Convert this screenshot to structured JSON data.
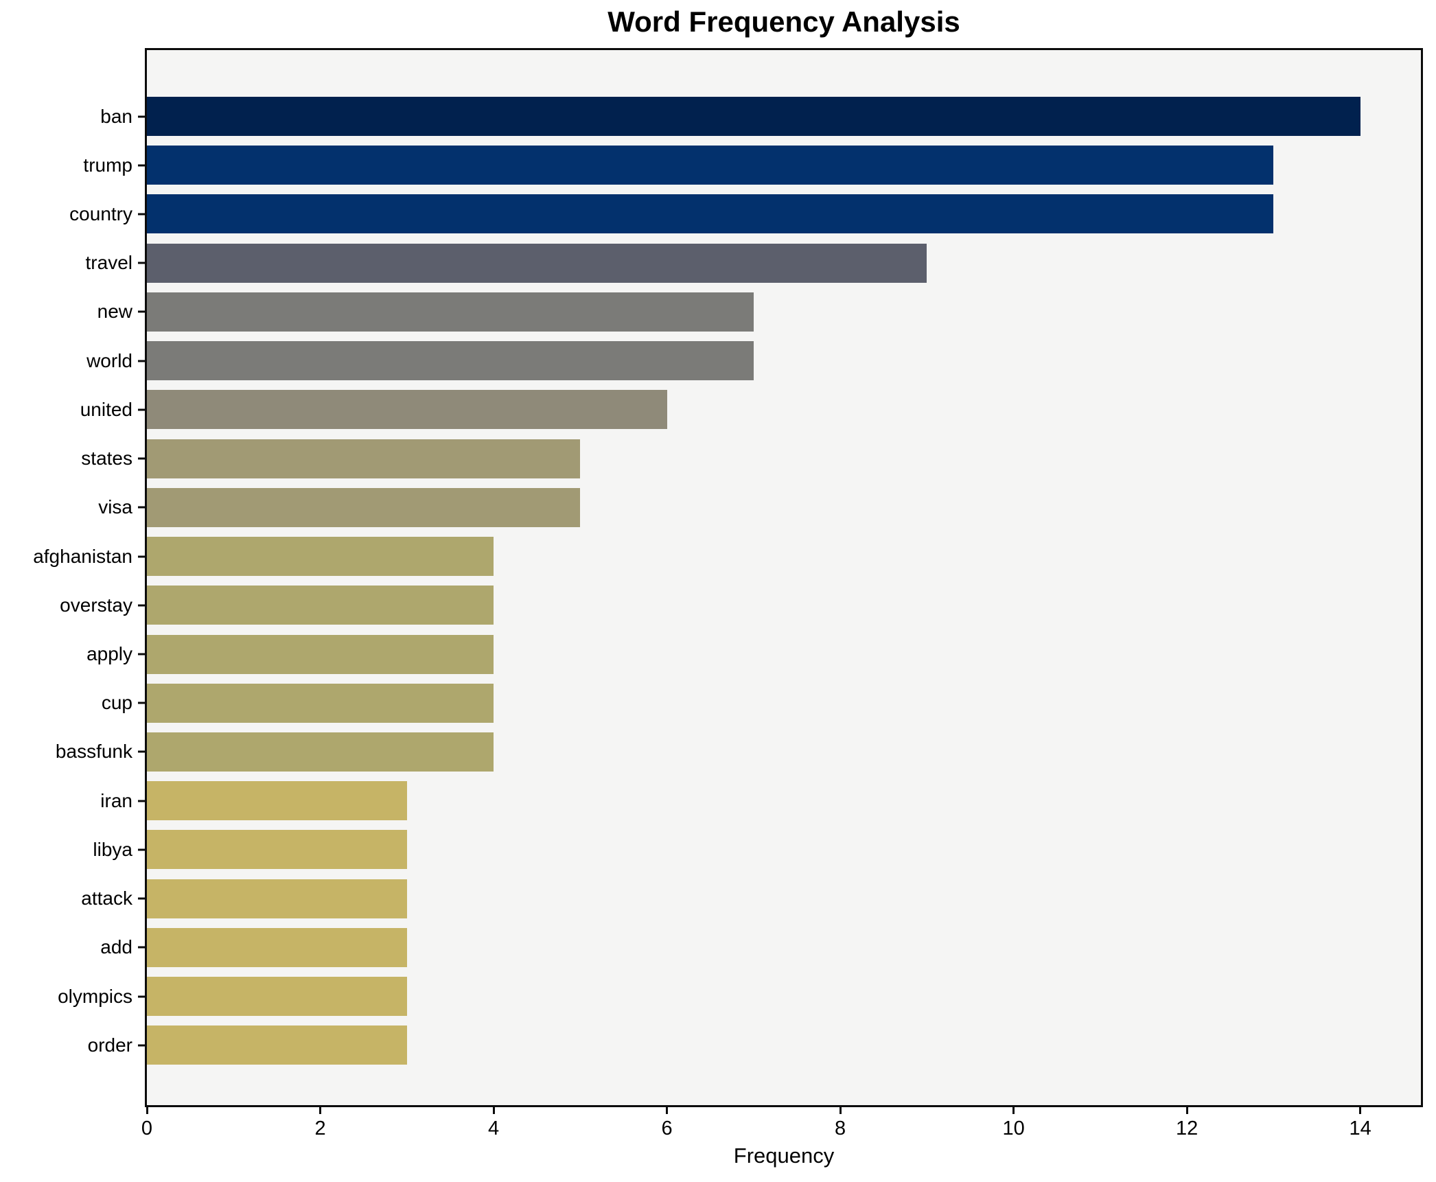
{
  "chart_data": {
    "type": "bar",
    "orientation": "horizontal",
    "title": "Word Frequency Analysis",
    "xlabel": "Frequency",
    "ylabel": "",
    "categories": [
      "ban",
      "trump",
      "country",
      "travel",
      "new",
      "world",
      "united",
      "states",
      "visa",
      "afghanistan",
      "overstay",
      "apply",
      "cup",
      "bassfunk",
      "iran",
      "libya",
      "attack",
      "add",
      "olympics",
      "order"
    ],
    "values": [
      14,
      13,
      13,
      9,
      7,
      7,
      6,
      5,
      5,
      4,
      4,
      4,
      4,
      4,
      3,
      3,
      3,
      3,
      3,
      3
    ],
    "bar_colors": [
      "#01214e",
      "#03316d",
      "#03316d",
      "#5c5f6c",
      "#7b7b78",
      "#7b7b78",
      "#8f8a79",
      "#a19a74",
      "#a19a74",
      "#aea76d",
      "#aea76d",
      "#aea76d",
      "#aea76d",
      "#aea76d",
      "#c6b466",
      "#c6b466",
      "#c6b466",
      "#c6b466",
      "#c6b466",
      "#c6b466"
    ],
    "xticks": [
      "0",
      "2",
      "4",
      "6",
      "8",
      "10",
      "12",
      "14"
    ],
    "xtick_values": [
      0,
      2,
      4,
      6,
      8,
      10,
      12,
      14
    ],
    "xlim": [
      0,
      14.7
    ],
    "grid": false,
    "legend_position": "none",
    "plot_background": "#f5f5f4",
    "figure_background": "#ffffff",
    "axis_color": "#0c0c0c"
  }
}
